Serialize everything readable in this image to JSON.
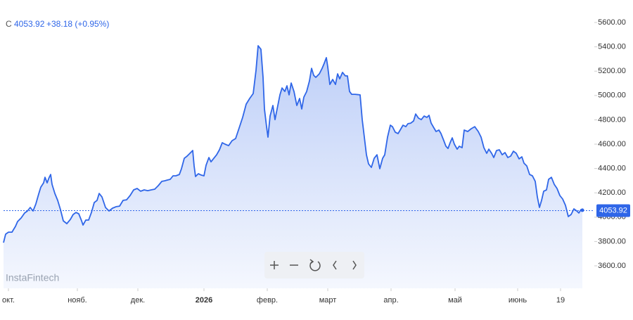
{
  "chart_data": {
    "type": "area",
    "legend": {
      "label": "C",
      "value": "4053.92",
      "change": "+38.18 (+0.95%)"
    },
    "watermark": "InstaFintech",
    "color": "#2f66e8",
    "x": [
      0,
      3,
      7,
      12,
      17,
      20,
      25,
      30,
      34,
      38,
      42,
      46,
      50,
      53,
      57,
      59,
      62,
      65,
      67,
      69,
      73,
      77,
      81,
      85,
      90,
      95,
      99,
      103,
      107,
      111,
      113,
      117,
      121,
      125,
      129,
      133,
      136,
      140,
      145,
      150,
      155,
      160,
      165,
      170,
      175,
      180,
      185,
      190,
      195,
      200,
      205,
      210,
      215,
      220,
      225,
      229,
      233,
      237,
      241,
      245,
      250,
      253,
      257,
      261,
      265,
      269,
      271,
      273,
      277,
      281,
      285,
      288,
      292,
      295,
      299,
      303,
      307,
      311,
      315,
      320,
      325,
      330,
      335,
      340,
      345,
      350,
      355,
      359,
      362,
      366,
      369,
      371,
      374,
      376,
      379,
      383,
      386,
      389,
      393,
      396,
      400,
      403,
      406,
      409,
      413,
      417,
      421,
      424,
      427,
      431,
      435,
      438,
      441,
      444,
      449,
      453,
      456,
      459,
      461,
      464,
      468,
      472,
      475,
      478,
      482,
      486,
      489,
      492,
      495,
      500,
      507,
      510,
      513,
      516,
      519,
      523,
      527,
      531,
      535,
      539,
      542,
      546,
      550,
      553,
      557,
      561,
      564,
      568,
      572,
      575,
      579,
      583,
      586,
      590,
      594,
      598,
      602,
      605,
      608,
      612,
      615,
      619,
      622,
      626,
      629,
      632,
      635,
      638,
      641,
      645,
      648,
      652,
      655,
      660,
      665,
      670,
      675,
      679,
      683,
      687,
      690,
      694,
      697,
      701,
      705,
      709,
      713,
      717,
      721,
      725,
      729,
      733,
      737,
      740,
      744,
      748,
      752,
      756,
      759,
      762,
      765,
      768,
      772,
      775,
      779,
      783,
      787,
      791,
      795,
      799,
      803,
      807,
      811,
      815,
      818,
      821,
      823
    ],
    "values": [
      3791,
      3860,
      3877,
      3877,
      3924,
      3964,
      3993,
      4034,
      4051,
      4080,
      4051,
      4109,
      4190,
      4247,
      4282,
      4328,
      4282,
      4328,
      4351,
      4270,
      4195,
      4138,
      4062,
      3970,
      3947,
      3981,
      4022,
      4039,
      4028,
      3970,
      3935,
      3976,
      3976,
      4039,
      4120,
      4138,
      4195,
      4166,
      4080,
      4051,
      4074,
      4086,
      4091,
      4138,
      4143,
      4178,
      4224,
      4236,
      4213,
      4224,
      4218,
      4224,
      4230,
      4259,
      4294,
      4299,
      4305,
      4311,
      4340,
      4340,
      4351,
      4398,
      4484,
      4502,
      4525,
      4548,
      4421,
      4334,
      4357,
      4346,
      4340,
      4427,
      4490,
      4455,
      4484,
      4513,
      4554,
      4612,
      4600,
      4588,
      4629,
      4646,
      4733,
      4820,
      4929,
      4976,
      5016,
      5207,
      5409,
      5380,
      5149,
      4889,
      4744,
      4658,
      4831,
      4918,
      4802,
      4889,
      5005,
      5062,
      5033,
      5080,
      5005,
      5103,
      5033,
      4918,
      4976,
      4889,
      4987,
      5033,
      5120,
      5224,
      5166,
      5149,
      5178,
      5224,
      5265,
      5311,
      5236,
      5091,
      5132,
      5091,
      5178,
      5137,
      5190,
      5161,
      5161,
      5033,
      5010,
      5010,
      5005,
      4802,
      4658,
      4513,
      4438,
      4409,
      4484,
      4513,
      4398,
      4484,
      4513,
      4658,
      4756,
      4744,
      4698,
      4687,
      4716,
      4756,
      4744,
      4768,
      4773,
      4791,
      4848,
      4814,
      4802,
      4831,
      4820,
      4837,
      4773,
      4733,
      4704,
      4716,
      4687,
      4629,
      4583,
      4565,
      4612,
      4652,
      4600,
      4559,
      4583,
      4571,
      4716,
      4704,
      4727,
      4744,
      4704,
      4658,
      4571,
      4525,
      4559,
      4525,
      4490,
      4548,
      4554,
      4513,
      4531,
      4490,
      4502,
      4542,
      4525,
      4479,
      4496,
      4444,
      4421,
      4351,
      4340,
      4294,
      4166,
      4080,
      4138,
      4213,
      4224,
      4311,
      4328,
      4270,
      4236,
      4178,
      4149,
      4097,
      4005,
      4022,
      4068,
      4051,
      4034,
      4062,
      4057
    ],
    "price_line": {
      "value": 4053.92,
      "label": "4053.92"
    },
    "xlim": [
      0,
      840
    ],
    "xticks": [
      {
        "value": 7,
        "label": "окт."
      },
      {
        "value": 105,
        "label": "нояб."
      },
      {
        "value": 191,
        "label": "дек."
      },
      {
        "value": 285,
        "label": "2026"
      },
      {
        "value": 375,
        "label": "февр."
      },
      {
        "value": 461,
        "label": "март"
      },
      {
        "value": 551,
        "label": "апр."
      },
      {
        "value": 642,
        "label": "май"
      },
      {
        "value": 731,
        "label": "июнь"
      },
      {
        "value": 792,
        "label": "19"
      }
    ],
    "ylim": [
      3415,
      5785
    ],
    "yticks": [
      {
        "value": 3600,
        "label": "3600.00"
      },
      {
        "value": 3800,
        "label": "3800.00"
      },
      {
        "value": 4000,
        "label": "4000.00"
      },
      {
        "value": 4200,
        "label": "4200.00"
      },
      {
        "value": 4400,
        "label": "4400.00"
      },
      {
        "value": 4600,
        "label": "4600.00"
      },
      {
        "value": 4800,
        "label": "4800.00"
      },
      {
        "value": 5000,
        "label": "5000.00"
      },
      {
        "value": 5200,
        "label": "5200.00"
      },
      {
        "value": 5400,
        "label": "5400.00"
      },
      {
        "value": 5600,
        "label": "5600.00"
      }
    ]
  }
}
